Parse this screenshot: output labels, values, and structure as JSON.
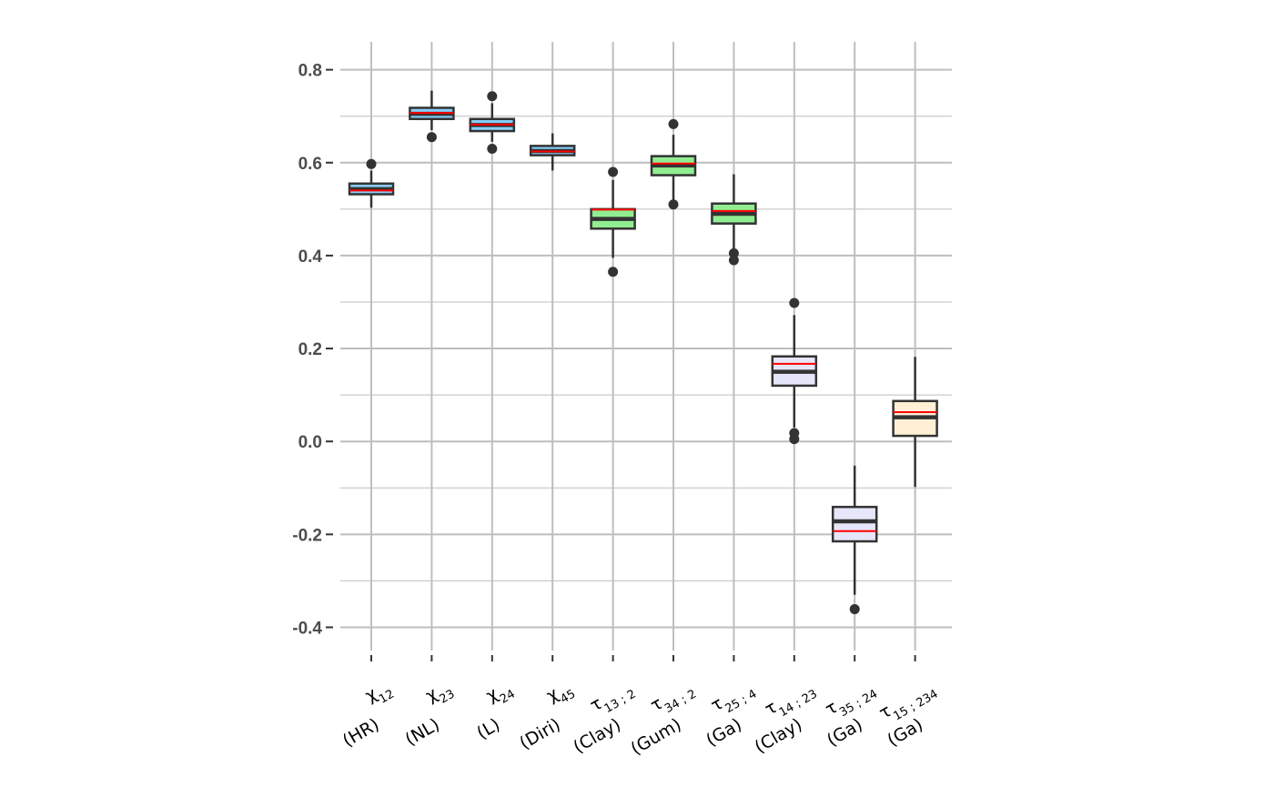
{
  "chart_data": {
    "type": "boxplot",
    "ylim": [
      -0.45,
      0.86
    ],
    "yticks": [
      -0.4,
      -0.2,
      0.0,
      0.2,
      0.4,
      0.6,
      0.8
    ],
    "ytick_labels": [
      "-0.4",
      "-0.2",
      "0.0",
      "0.2",
      "0.4",
      "0.6",
      "0.8"
    ],
    "grid": true,
    "legend": "none",
    "colors": {
      "median": "#333333",
      "mean": "#ff0000",
      "box_outline": "#333333",
      "grid": "#bebebe",
      "whisker": "#333333"
    },
    "boxes": [
      {
        "base": "χ",
        "sub": "12",
        "family": "(HR)",
        "fill": "#87cefa",
        "q1": 0.532,
        "median": 0.543,
        "mean": 0.54,
        "q3": 0.555,
        "whisker_low": 0.503,
        "whisker_high": 0.583,
        "outliers": [
          0.597
        ]
      },
      {
        "base": "χ",
        "sub": "23",
        "family": "(NL)",
        "fill": "#87cefa",
        "q1": 0.694,
        "median": 0.705,
        "mean": 0.707,
        "q3": 0.718,
        "whisker_low": 0.67,
        "whisker_high": 0.755,
        "outliers": [
          0.655
        ]
      },
      {
        "base": "χ",
        "sub": "24",
        "family": "(L)",
        "fill": "#87cefa",
        "q1": 0.668,
        "median": 0.681,
        "mean": 0.682,
        "q3": 0.694,
        "whisker_low": 0.645,
        "whisker_high": 0.728,
        "outliers": [
          0.743,
          0.63
        ]
      },
      {
        "base": "χ",
        "sub": "45",
        "family": "(Diri)",
        "fill": "#87cefa",
        "q1": 0.616,
        "median": 0.625,
        "mean": 0.624,
        "q3": 0.636,
        "whisker_low": 0.583,
        "whisker_high": 0.663,
        "outliers": []
      },
      {
        "base": "τ",
        "sub": "13 ; 2",
        "family": "(Clay)",
        "fill": "#90ee90",
        "q1": 0.458,
        "median": 0.479,
        "mean": 0.499,
        "q3": 0.5,
        "whisker_low": 0.395,
        "whisker_high": 0.563,
        "outliers": [
          0.58,
          0.365
        ]
      },
      {
        "base": "τ",
        "sub": "34 ; 2",
        "family": "(Gum)",
        "fill": "#90ee90",
        "q1": 0.573,
        "median": 0.594,
        "mean": 0.598,
        "q3": 0.614,
        "whisker_low": 0.518,
        "whisker_high": 0.66,
        "outliers": [
          0.683,
          0.51
        ]
      },
      {
        "base": "τ",
        "sub": "25 ; 4",
        "family": "(Ga)",
        "fill": "#90ee90",
        "q1": 0.469,
        "median": 0.49,
        "mean": 0.496,
        "q3": 0.512,
        "whisker_low": 0.415,
        "whisker_high": 0.575,
        "outliers": [
          0.405,
          0.39
        ]
      },
      {
        "base": "τ",
        "sub": "14 ; 23",
        "family": "(Clay)",
        "fill": "#e6e6fa",
        "q1": 0.12,
        "median": 0.15,
        "mean": 0.167,
        "q3": 0.183,
        "whisker_low": 0.03,
        "whisker_high": 0.272,
        "outliers": [
          0.298,
          0.018,
          0.005
        ]
      },
      {
        "base": "τ",
        "sub": "35 ; 24",
        "family": "(Ga)",
        "fill": "#e6e6fa",
        "q1": -0.215,
        "median": -0.172,
        "mean": -0.193,
        "q3": -0.141,
        "whisker_low": -0.33,
        "whisker_high": -0.052,
        "outliers": [
          -0.361
        ]
      },
      {
        "base": "τ",
        "sub": "15 ; 234",
        "family": "(Ga)",
        "fill": "#ffefd5",
        "q1": 0.012,
        "median": 0.052,
        "mean": 0.063,
        "q3": 0.087,
        "whisker_low": -0.098,
        "whisker_high": 0.182,
        "outliers": []
      }
    ]
  }
}
